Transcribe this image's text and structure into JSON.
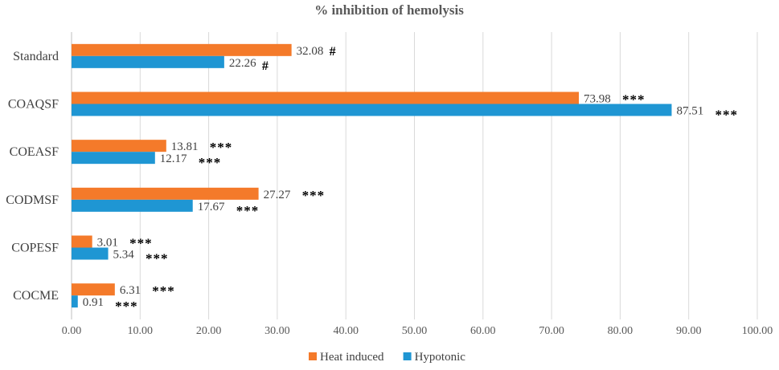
{
  "chart_data": {
    "type": "bar",
    "orientation": "horizontal",
    "title": "% inhibition of hemolysis",
    "xlabel": "",
    "ylabel": "",
    "xlim": [
      0,
      100
    ],
    "xticks": [
      "0.00",
      "10.00",
      "20.00",
      "30.00",
      "40.00",
      "50.00",
      "60.00",
      "70.00",
      "80.00",
      "90.00",
      "100.00"
    ],
    "grid": "vertical",
    "legend_position": "bottom",
    "categories": [
      "Standard",
      "COAQSF",
      "COEASF",
      "CODMSF",
      "COPESF",
      "COCME"
    ],
    "series": [
      {
        "name": "Heat induced",
        "color": "#F47A2A",
        "values": [
          32.08,
          73.98,
          13.81,
          27.27,
          3.01,
          6.31
        ],
        "labels": [
          "32.08",
          "73.98",
          "13.81",
          "27.27",
          "3.01",
          "6.31"
        ],
        "significance": [
          "#",
          "***",
          "***",
          "***",
          "***",
          "***"
        ]
      },
      {
        "name": "Hypotonic",
        "color": "#1F96D3",
        "values": [
          22.26,
          87.51,
          12.17,
          17.67,
          5.34,
          0.91
        ],
        "labels": [
          "22.26",
          "87.51",
          "12.17",
          "17.67",
          "5.34",
          "0.91"
        ],
        "significance": [
          "#",
          "***",
          "***",
          "***",
          "***",
          "***"
        ]
      }
    ]
  }
}
